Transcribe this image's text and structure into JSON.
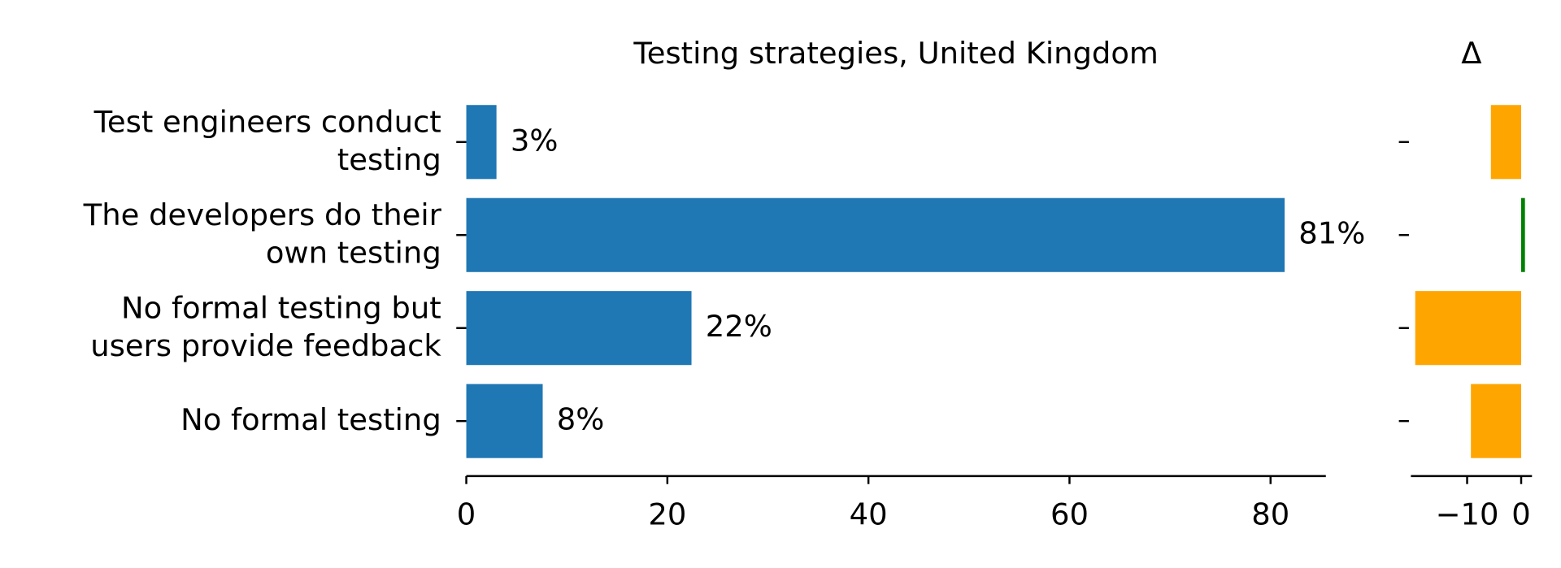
{
  "chart_data": [
    {
      "type": "barh",
      "title": "Testing strategies, United Kingdom",
      "categories": [
        "Test engineers conduct\ntesting",
        "The developers do their\nown testing",
        "No formal testing but\nusers provide feedback",
        "No formal testing"
      ],
      "values": [
        3.0,
        81.4,
        22.4,
        7.6
      ],
      "value_labels": [
        "3%",
        "81%",
        "22%",
        "8%"
      ],
      "color": "#1f77b4",
      "xlim": [
        0,
        85.5
      ],
      "xticks": [
        0,
        20,
        40,
        60,
        80
      ]
    },
    {
      "type": "barh",
      "title": "Δ",
      "values": [
        -5.6,
        0.7,
        -19.6,
        -9.3
      ],
      "colors": [
        "#ffa500",
        "#008000",
        "#ffa500",
        "#ffa500"
      ],
      "xlim": [
        -20.4,
        2.0
      ],
      "xticks": [
        {
          "value": -10,
          "label": "−10"
        },
        0
      ]
    }
  ]
}
